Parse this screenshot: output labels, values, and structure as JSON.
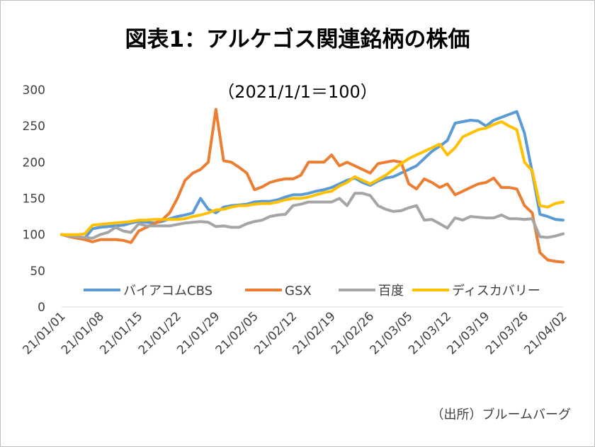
{
  "chart_data": {
    "type": "line",
    "title": "図表1：アルケゴス関連銘柄の株価",
    "subtitle": "（2021/1/1＝100）",
    "source": "（出所）ブルームバーグ",
    "xlabel": "",
    "ylabel": "",
    "ylim": [
      0,
      300
    ],
    "yticks": [
      0,
      50,
      100,
      150,
      200,
      250,
      300
    ],
    "grid": false,
    "legend_position": "bottom-inside",
    "x_tick_labels": [
      "21/01/01",
      "21/01/08",
      "21/01/15",
      "21/01/22",
      "21/01/29",
      "21/02/05",
      "21/02/12",
      "21/02/19",
      "21/02/26",
      "21/03/05",
      "21/03/12",
      "21/03/19",
      "21/03/26",
      "21/04/02"
    ],
    "x": [
      "21/01/01",
      "21/01/04",
      "21/01/05",
      "21/01/06",
      "21/01/07",
      "21/01/08",
      "21/01/11",
      "21/01/12",
      "21/01/13",
      "21/01/14",
      "21/01/15",
      "21/01/18",
      "21/01/19",
      "21/01/20",
      "21/01/21",
      "21/01/22",
      "21/01/25",
      "21/01/26",
      "21/01/27",
      "21/01/28",
      "21/01/29",
      "21/02/01",
      "21/02/02",
      "21/02/03",
      "21/02/04",
      "21/02/05",
      "21/02/08",
      "21/02/09",
      "21/02/10",
      "21/02/11",
      "21/02/12",
      "21/02/15",
      "21/02/16",
      "21/02/17",
      "21/02/18",
      "21/02/19",
      "21/02/22",
      "21/02/23",
      "21/02/24",
      "21/02/25",
      "21/02/26",
      "21/03/01",
      "21/03/02",
      "21/03/03",
      "21/03/04",
      "21/03/05",
      "21/03/08",
      "21/03/09",
      "21/03/10",
      "21/03/11",
      "21/03/12",
      "21/03/15",
      "21/03/16",
      "21/03/17",
      "21/03/18",
      "21/03/19",
      "21/03/22",
      "21/03/23",
      "21/03/24",
      "21/03/25",
      "21/03/26",
      "21/03/29",
      "21/03/30",
      "21/03/31",
      "21/04/01",
      "21/04/02"
    ],
    "series": [
      {
        "name": "バイアコムCBS",
        "color": "#5B9BD5",
        "values": [
          100,
          98,
          96,
          95,
          108,
          110,
          111,
          112,
          113,
          116,
          118,
          117,
          116,
          118,
          122,
          125,
          127,
          130,
          150,
          135,
          130,
          138,
          140,
          141,
          142,
          145,
          146,
          146,
          148,
          152,
          155,
          155,
          157,
          160,
          162,
          165,
          170,
          175,
          178,
          172,
          168,
          174,
          178,
          180,
          185,
          190,
          195,
          205,
          215,
          222,
          230,
          254,
          256,
          258,
          257,
          250,
          258,
          262,
          266,
          270,
          240,
          186,
          128,
          125,
          121,
          120
        ]
      },
      {
        "name": "GSX",
        "color": "#ED7D31",
        "values": [
          100,
          97,
          95,
          93,
          90,
          93,
          93,
          93,
          92,
          89,
          105,
          110,
          115,
          120,
          130,
          150,
          175,
          185,
          190,
          200,
          273,
          202,
          200,
          193,
          185,
          162,
          166,
          172,
          175,
          177,
          177,
          182,
          200,
          200,
          200,
          210,
          195,
          200,
          195,
          190,
          185,
          198,
          200,
          202,
          200,
          170,
          163,
          177,
          172,
          165,
          170,
          155,
          160,
          165,
          170,
          172,
          178,
          165,
          165,
          163,
          140,
          130,
          75,
          65,
          63,
          62
        ]
      },
      {
        "name": "百度",
        "color": "#A5A5A5",
        "values": [
          100,
          98,
          97,
          96,
          95,
          100,
          103,
          110,
          105,
          103,
          115,
          112,
          112,
          112,
          112,
          114,
          116,
          117,
          118,
          117,
          111,
          112,
          110,
          110,
          115,
          118,
          120,
          125,
          127,
          128,
          140,
          142,
          145,
          145,
          145,
          145,
          150,
          140,
          157,
          157,
          154,
          140,
          135,
          132,
          133,
          137,
          140,
          120,
          121,
          115,
          109,
          123,
          120,
          125,
          124,
          123,
          123,
          127,
          122,
          122,
          121,
          122,
          97,
          96,
          98,
          101
        ]
      },
      {
        "name": "ディスカバリー",
        "color": "#FFC000",
        "values": [
          100,
          100,
          100,
          101,
          113,
          114,
          115,
          116,
          117,
          118,
          120,
          120,
          121,
          121,
          121,
          121,
          122,
          125,
          127,
          130,
          134,
          135,
          138,
          140,
          140,
          142,
          143,
          143,
          145,
          148,
          150,
          150,
          152,
          155,
          158,
          160,
          167,
          172,
          180,
          175,
          170,
          176,
          182,
          190,
          198,
          205,
          210,
          215,
          220,
          225,
          210,
          220,
          235,
          240,
          245,
          247,
          252,
          256,
          250,
          245,
          200,
          188,
          140,
          138,
          143,
          145
        ]
      }
    ]
  }
}
